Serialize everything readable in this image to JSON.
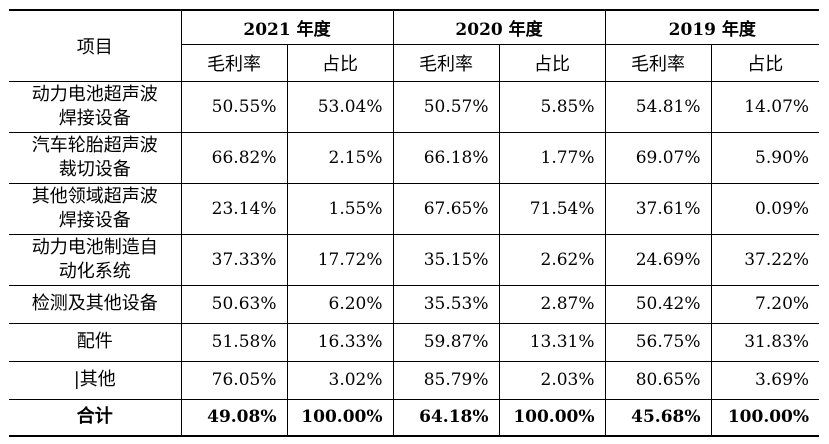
{
  "table": {
    "item_header": "项目",
    "years": [
      "2021 年度",
      "2020 年度",
      "2019 年度"
    ],
    "sub_headers": [
      "毛利率",
      "占比",
      "毛利率",
      "占比",
      "毛利率",
      "占比"
    ],
    "rows": [
      {
        "label_lines": [
          "动力电池超声波",
          "焊接设备"
        ],
        "values": [
          "50.55%",
          "53.04%",
          "50.57%",
          "5.85%",
          "54.81%",
          "14.07%"
        ]
      },
      {
        "label_lines": [
          "汽车轮胎超声波",
          "裁切设备"
        ],
        "values": [
          "66.82%",
          "2.15%",
          "66.18%",
          "1.77%",
          "69.07%",
          "5.90%"
        ]
      },
      {
        "label_lines": [
          "其他领域超声波",
          "焊接设备"
        ],
        "values": [
          "23.14%",
          "1.55%",
          "67.65%",
          "71.54%",
          "37.61%",
          "0.09%"
        ]
      },
      {
        "label_lines": [
          "动力电池制造自",
          "动化系统"
        ],
        "values": [
          "37.33%",
          "17.72%",
          "35.15%",
          "2.62%",
          "24.69%",
          "37.22%"
        ]
      },
      {
        "label_lines": [
          "检测及其他设备"
        ],
        "values": [
          "50.63%",
          "6.20%",
          "35.53%",
          "2.87%",
          "50.42%",
          "7.20%"
        ]
      },
      {
        "label_lines": [
          "配件"
        ],
        "values": [
          "51.58%",
          "16.33%",
          "59.87%",
          "13.31%",
          "56.75%",
          "31.83%"
        ]
      },
      {
        "label_lines": [
          "|其他"
        ],
        "values": [
          "76.05%",
          "3.02%",
          "85.79%",
          "2.03%",
          "80.65%",
          "3.69%"
        ]
      }
    ],
    "total": {
      "label": "合计",
      "values": [
        "49.08%",
        "100.00%",
        "64.18%",
        "100.00%",
        "45.68%",
        "100.00%"
      ]
    }
  }
}
